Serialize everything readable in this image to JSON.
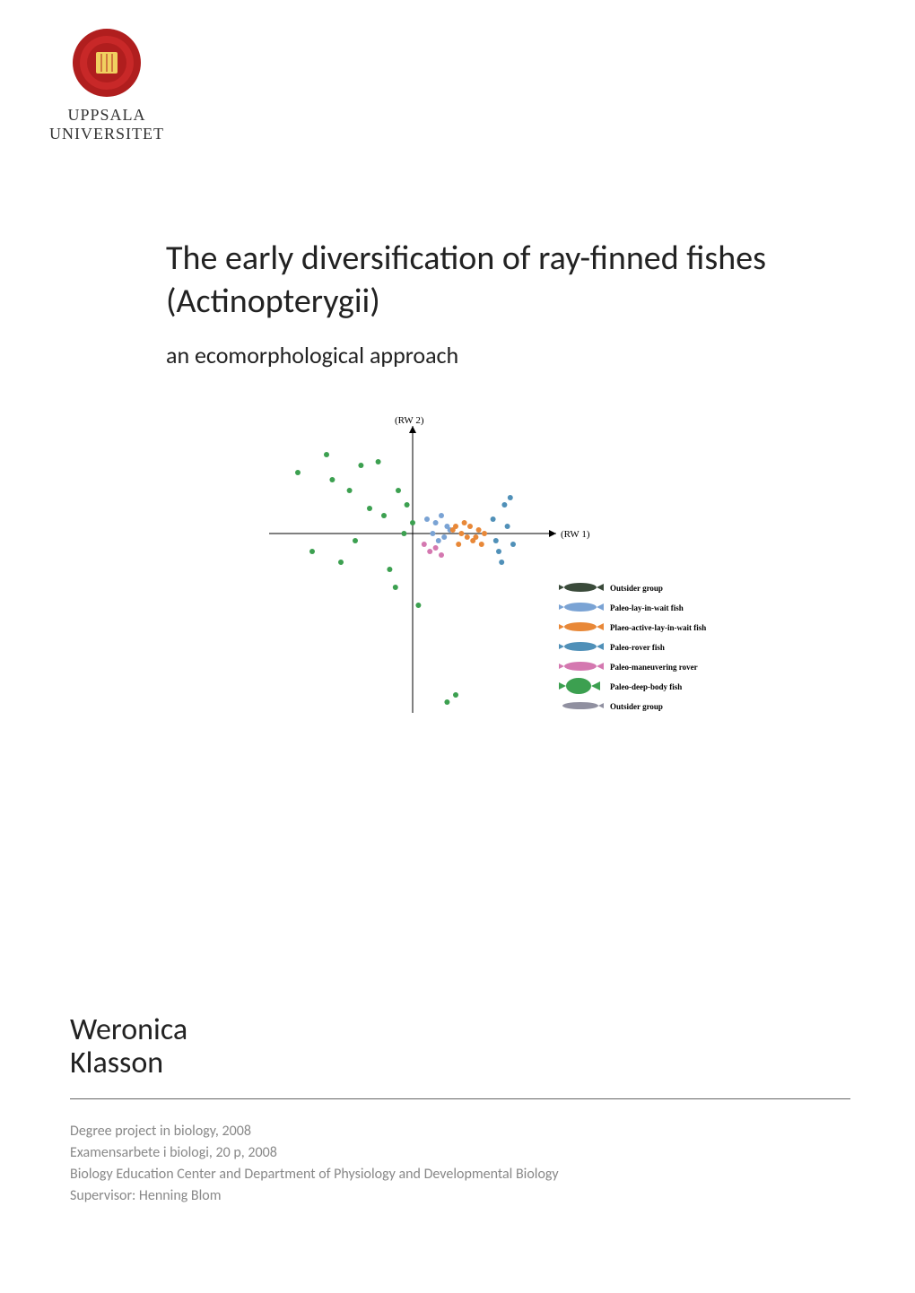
{
  "logo": {
    "line1": "UPPSALA",
    "line2": "UNIVERSITET",
    "seal_color": "#b01e1e",
    "seal_inner": "#f0d060"
  },
  "title": {
    "main": "The early diversification of ray-finned fishes (Actinopterygii)",
    "subtitle": "an ecomorphological approach"
  },
  "author": {
    "first_name": "Weronica",
    "last_name": "Klasson"
  },
  "footer": {
    "line1": "Degree project in biology, 2008",
    "line2": "Examensarbete i biologi, 20 p, 2008",
    "line3": "Biology Education Center and Department of Physiology and Developmental Biology",
    "line4": "Supervisor: Henning Blom"
  },
  "chart": {
    "type": "scatter",
    "x_axis_label": "(RW 1)",
    "y_axis_label": "(RW 2)",
    "xlim": [
      -0.5,
      0.5
    ],
    "ylim": [
      -0.5,
      0.3
    ],
    "background_color": "#ffffff",
    "axis_color": "#000000",
    "point_radius": 3,
    "series": [
      {
        "name": "outsider_top",
        "color": "#3a4a3a",
        "points": []
      },
      {
        "name": "paleo_lay_in_wait",
        "color": "#7aa3d4",
        "points": [
          [
            0.05,
            0.04
          ],
          [
            0.08,
            0.03
          ],
          [
            0.1,
            0.05
          ],
          [
            0.12,
            0.02
          ],
          [
            0.11,
            -0.01
          ],
          [
            0.13,
            0.01
          ],
          [
            0.09,
            -0.02
          ],
          [
            0.07,
            0.0
          ]
        ]
      },
      {
        "name": "paleo_active_lay_in_wait",
        "color": "#e88838",
        "points": [
          [
            0.15,
            0.02
          ],
          [
            0.17,
            0.0
          ],
          [
            0.19,
            -0.01
          ],
          [
            0.18,
            0.03
          ],
          [
            0.21,
            -0.02
          ],
          [
            0.23,
            0.01
          ],
          [
            0.16,
            -0.03
          ],
          [
            0.2,
            0.02
          ],
          [
            0.14,
            0.01
          ],
          [
            0.22,
            -0.01
          ],
          [
            0.25,
            0.0
          ],
          [
            0.24,
            -0.03
          ]
        ]
      },
      {
        "name": "paleo_rover",
        "color": "#5090b8",
        "points": [
          [
            0.28,
            0.04
          ],
          [
            0.3,
            -0.05
          ],
          [
            0.32,
            0.08
          ],
          [
            0.31,
            -0.08
          ],
          [
            0.33,
            0.02
          ],
          [
            0.35,
            -0.03
          ],
          [
            0.34,
            0.1
          ],
          [
            0.29,
            -0.02
          ]
        ]
      },
      {
        "name": "paleo_maneuvering_rover",
        "color": "#d478b0",
        "points": [
          [
            0.08,
            -0.04
          ],
          [
            0.1,
            -0.06
          ],
          [
            0.04,
            -0.03
          ],
          [
            0.06,
            -0.05
          ]
        ]
      },
      {
        "name": "paleo_deep_body",
        "color": "#3ca050",
        "points": [
          [
            -0.4,
            0.17
          ],
          [
            -0.3,
            0.22
          ],
          [
            -0.28,
            0.15
          ],
          [
            -0.22,
            0.12
          ],
          [
            -0.18,
            0.19
          ],
          [
            -0.12,
            0.2
          ],
          [
            -0.15,
            0.07
          ],
          [
            -0.2,
            -0.02
          ],
          [
            -0.1,
            0.05
          ],
          [
            -0.25,
            -0.08
          ],
          [
            -0.05,
            0.12
          ],
          [
            -0.02,
            0.08
          ],
          [
            -0.35,
            -0.05
          ],
          [
            -0.08,
            -0.1
          ],
          [
            -0.06,
            -0.15
          ],
          [
            0.02,
            -0.2
          ],
          [
            0.0,
            0.03
          ],
          [
            -0.03,
            0.0
          ],
          [
            0.15,
            -0.45
          ],
          [
            0.12,
            -0.47
          ]
        ]
      },
      {
        "name": "outsider_bottom",
        "color": "#9090a0",
        "points": []
      }
    ],
    "legend": {
      "position": "bottom-right",
      "items": [
        {
          "label": "Outsider group",
          "fish_color": "#3a4a3a"
        },
        {
          "label": "Paleo-lay-in-wait fish",
          "fish_color": "#7aa3d4"
        },
        {
          "label": "Plaeo-active-lay-in-wait fish",
          "fish_color": "#e88838"
        },
        {
          "label": "Paleo-rover fish",
          "fish_color": "#5090b8"
        },
        {
          "label": "Paleo-maneuvering rover",
          "fish_color": "#d478b0"
        },
        {
          "label": "Paleo-deep-body fish",
          "fish_color": "#3ca050"
        },
        {
          "label": "Outsider group",
          "fish_color": "#9090a0"
        }
      ]
    }
  },
  "colors": {
    "text_primary": "#222222",
    "text_footer": "#888888",
    "divider": "#666666"
  },
  "typography": {
    "title_fontsize": 38,
    "subtitle_fontsize": 26,
    "author_fontsize": 34,
    "footer_fontsize": 16,
    "logo_fontsize": 18
  }
}
